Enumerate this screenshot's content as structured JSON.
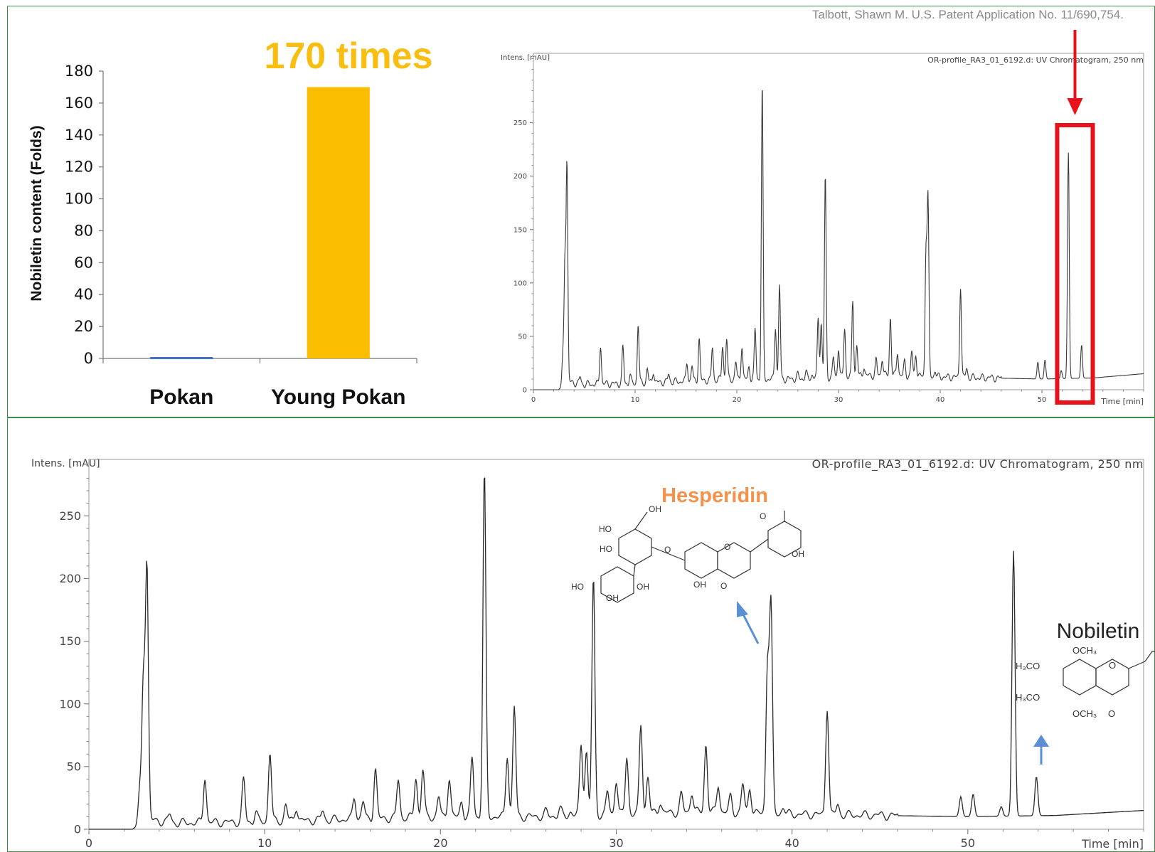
{
  "citation": "Talbott, Shawn M. U.S. Patent Application No. 11/690,754.",
  "highlight_color": "#e8131a",
  "arrow_color": "#5b8fd3",
  "chart_data": [
    {
      "type": "bar",
      "annotation": "170 times",
      "annotation_color": "#f9be12",
      "ylabel": "Nobiletin content (Folds)",
      "xlabel": "",
      "title": "",
      "categories": [
        "Pokan",
        "Young Pokan"
      ],
      "values": [
        1,
        170
      ],
      "colors": [
        "#4472c4",
        "#fbbd00"
      ],
      "ylim": [
        0,
        180
      ],
      "yticks": [
        0,
        20,
        40,
        60,
        80,
        100,
        120,
        140,
        160,
        180
      ],
      "grid": false,
      "legend": "none"
    },
    {
      "type": "line",
      "title": "OR-profile_RA3_01_6192.d: UV Chromatogram, 250 nm",
      "xlabel": "Time [min]",
      "ylabel": "Intens. [mAU]",
      "xlim": [
        0,
        60
      ],
      "ylim": [
        0,
        315
      ],
      "xticks": [
        "0",
        "10",
        "20",
        "30",
        "40",
        "50"
      ],
      "yticks": [
        "0",
        "50",
        "100",
        "150",
        "200",
        "250"
      ],
      "baseline": [
        [
          0,
          0
        ],
        [
          2.5,
          0
        ],
        [
          3,
          8
        ],
        [
          5,
          5
        ],
        [
          10,
          6
        ],
        [
          15,
          8
        ],
        [
          20,
          10
        ],
        [
          25,
          10
        ],
        [
          30,
          12
        ],
        [
          35,
          14
        ],
        [
          40,
          12
        ],
        [
          45,
          11
        ],
        [
          50,
          10
        ],
        [
          55,
          11
        ],
        [
          60,
          15
        ]
      ],
      "peaks": [
        [
          2.9,
          30
        ],
        [
          3.1,
          118
        ],
        [
          3.3,
          210
        ],
        [
          4.6,
          12
        ],
        [
          6.6,
          42
        ],
        [
          8.8,
          40
        ],
        [
          9.5,
          14
        ],
        [
          10.3,
          62
        ],
        [
          11.2,
          20
        ],
        [
          11.8,
          18
        ],
        [
          13.3,
          15
        ],
        [
          15.1,
          26
        ],
        [
          15.6,
          22
        ],
        [
          16.3,
          48
        ],
        [
          17.6,
          40
        ],
        [
          18.6,
          42
        ],
        [
          19.0,
          48
        ],
        [
          19.9,
          26
        ],
        [
          20.5,
          42
        ],
        [
          21.2,
          22
        ],
        [
          21.8,
          57
        ],
        [
          22.5,
          285
        ],
        [
          23.8,
          60
        ],
        [
          24.2,
          98
        ],
        [
          26.0,
          14
        ],
        [
          26.8,
          16
        ],
        [
          27.4,
          14
        ],
        [
          28.0,
          68
        ],
        [
          28.3,
          62
        ],
        [
          28.7,
          200
        ],
        [
          29.5,
          30
        ],
        [
          30.0,
          40
        ],
        [
          30.6,
          58
        ],
        [
          31.4,
          84
        ],
        [
          31.8,
          42
        ],
        [
          32.5,
          22
        ],
        [
          33.7,
          28
        ],
        [
          34.3,
          30
        ],
        [
          35.1,
          68
        ],
        [
          35.8,
          36
        ],
        [
          36.5,
          26
        ],
        [
          37.2,
          36
        ],
        [
          37.6,
          34
        ],
        [
          38.6,
          130
        ],
        [
          38.8,
          178
        ],
        [
          39.5,
          18
        ],
        [
          42.0,
          98
        ],
        [
          42.6,
          20
        ],
        [
          44.8,
          12
        ],
        [
          45.7,
          11
        ],
        [
          49.6,
          26
        ],
        [
          50.3,
          28
        ],
        [
          51.9,
          18
        ],
        [
          52.6,
          222
        ],
        [
          53.9,
          42
        ]
      ],
      "highlight": {
        "x_from": 51.5,
        "x_to": 55.0
      }
    },
    {
      "type": "line",
      "title": "OR-profile_RA3_01_6192.d: UV Chromatogram, 250 nm",
      "xlabel": "Time [min]",
      "ylabel": "Intens. [mAU]",
      "xlim": [
        0,
        60
      ],
      "ylim": [
        0,
        295
      ],
      "xticks": [
        "0",
        "10",
        "20",
        "30",
        "40",
        "50"
      ],
      "yticks": [
        "0",
        "50",
        "100",
        "150",
        "200",
        "250"
      ],
      "baseline": [
        [
          0,
          0
        ],
        [
          2.5,
          0
        ],
        [
          3,
          8
        ],
        [
          5,
          5
        ],
        [
          10,
          6
        ],
        [
          15,
          8
        ],
        [
          20,
          10
        ],
        [
          25,
          10
        ],
        [
          30,
          12
        ],
        [
          35,
          14
        ],
        [
          40,
          12
        ],
        [
          45,
          11
        ],
        [
          50,
          10
        ],
        [
          55,
          11
        ],
        [
          60,
          15
        ]
      ],
      "peaks": [
        [
          2.9,
          30
        ],
        [
          3.1,
          118
        ],
        [
          3.3,
          210
        ],
        [
          4.6,
          12
        ],
        [
          6.6,
          42
        ],
        [
          8.8,
          40
        ],
        [
          9.5,
          14
        ],
        [
          10.3,
          62
        ],
        [
          11.2,
          20
        ],
        [
          11.8,
          18
        ],
        [
          13.3,
          15
        ],
        [
          15.1,
          26
        ],
        [
          15.6,
          22
        ],
        [
          16.3,
          48
        ],
        [
          17.6,
          40
        ],
        [
          18.6,
          42
        ],
        [
          19.0,
          48
        ],
        [
          19.9,
          26
        ],
        [
          20.5,
          42
        ],
        [
          21.2,
          22
        ],
        [
          21.8,
          57
        ],
        [
          22.5,
          285
        ],
        [
          23.8,
          60
        ],
        [
          24.2,
          98
        ],
        [
          26.0,
          14
        ],
        [
          26.8,
          16
        ],
        [
          27.4,
          14
        ],
        [
          28.0,
          68
        ],
        [
          28.3,
          62
        ],
        [
          28.7,
          200
        ],
        [
          29.5,
          30
        ],
        [
          30.0,
          40
        ],
        [
          30.6,
          58
        ],
        [
          31.4,
          84
        ],
        [
          31.8,
          42
        ],
        [
          32.5,
          22
        ],
        [
          33.7,
          28
        ],
        [
          34.3,
          30
        ],
        [
          35.1,
          68
        ],
        [
          35.8,
          36
        ],
        [
          36.5,
          26
        ],
        [
          37.2,
          36
        ],
        [
          37.6,
          34
        ],
        [
          38.6,
          130
        ],
        [
          38.8,
          178
        ],
        [
          39.5,
          18
        ],
        [
          42.0,
          98
        ],
        [
          42.6,
          20
        ],
        [
          44.8,
          12
        ],
        [
          45.7,
          11
        ],
        [
          49.6,
          26
        ],
        [
          50.3,
          28
        ],
        [
          51.9,
          18
        ],
        [
          52.6,
          222
        ],
        [
          53.9,
          42
        ]
      ],
      "annotations": [
        {
          "label": "Hesperidin",
          "color": "#f4914a"
        },
        {
          "label": "Nobiletin",
          "color": "#222222"
        }
      ]
    }
  ],
  "hesperidin_structure": {
    "groups": [
      "OH",
      "HO",
      "HO",
      "HO",
      "OH",
      "OH",
      "OH",
      "O",
      "O",
      "O",
      "O",
      "OH"
    ]
  },
  "nobiletin_structure": {
    "groups": [
      "OCH₃",
      "H₃CO",
      "H₃CO",
      "OCH₃",
      "O",
      "O"
    ]
  }
}
